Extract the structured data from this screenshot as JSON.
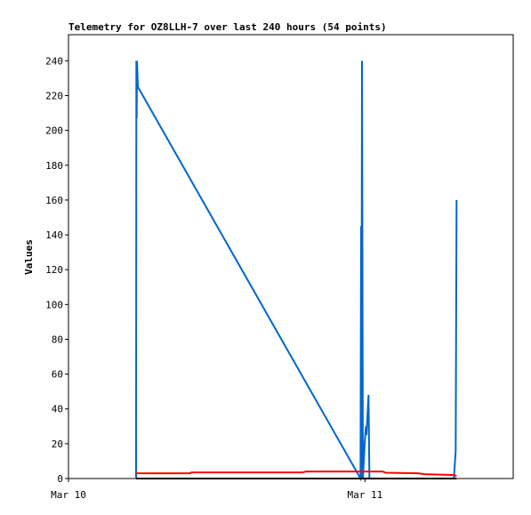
{
  "chart_data": {
    "type": "line",
    "title": "Telemetry for OZ8LLH-7 over last 240 hours (54 points)",
    "y_label": "Values",
    "xlim": [
      0,
      1.5
    ],
    "xticks": [
      {
        "value": 0,
        "label": "Mar 10"
      },
      {
        "value": 1,
        "label": "Mar 11"
      }
    ],
    "ylim": [
      0,
      255
    ],
    "yticks": [
      0,
      20,
      40,
      60,
      80,
      100,
      120,
      140,
      160,
      180,
      200,
      220,
      240
    ],
    "series": [
      {
        "color": "#0066cc",
        "x": [
          0.228,
          0.229,
          0.23,
          0.231,
          0.234,
          0.985,
          0.987,
          0.988,
          0.99,
          0.993,
          0.999,
          1.003,
          1.005,
          1.012,
          1.015,
          1.3,
          1.306,
          1.309
        ],
        "values": [
          0,
          240,
          207,
          240,
          225,
          0,
          145,
          0,
          240,
          0,
          20,
          30,
          25,
          48,
          0,
          0,
          16,
          160
        ]
      },
      {
        "color": "#ff0000",
        "x": [
          0.228,
          0.41,
          0.415,
          0.79,
          0.8,
          1.06,
          1.07,
          1.18,
          1.2,
          1.3,
          1.309
        ],
        "values": [
          3,
          3,
          3.5,
          3.5,
          4,
          4,
          3.3,
          3,
          2.5,
          2,
          1.5
        ]
      },
      {
        "color": "#000000",
        "x": [
          0.228,
          1.309
        ],
        "values": [
          0,
          0
        ]
      }
    ]
  }
}
